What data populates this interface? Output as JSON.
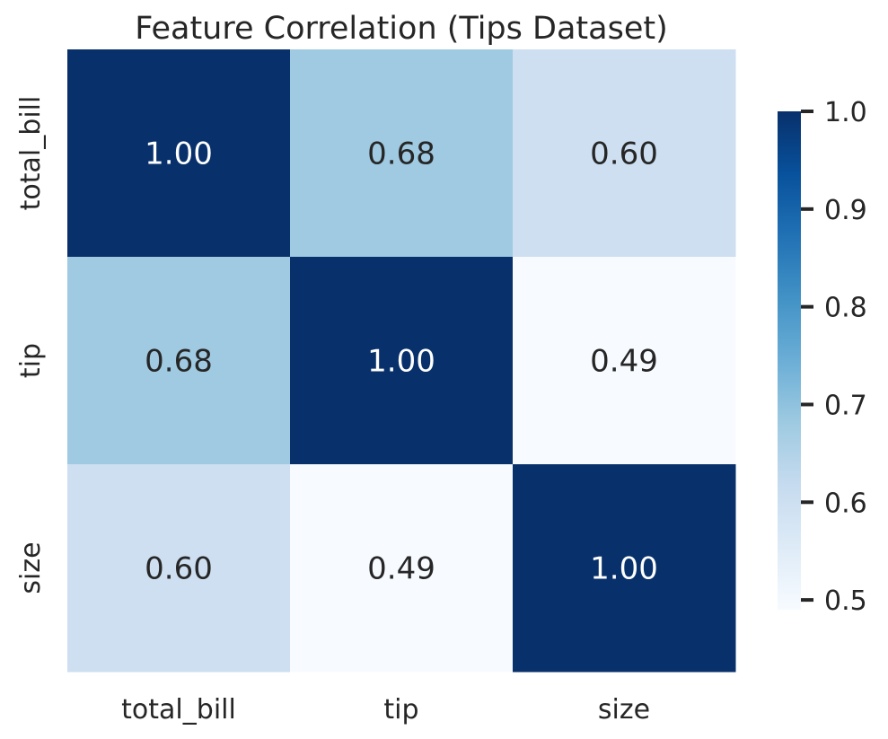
{
  "chart_data": {
    "type": "heatmap",
    "title": "Feature Correlation (Tips Dataset)",
    "x_labels": [
      "total_bill",
      "tip",
      "size"
    ],
    "y_labels": [
      "total_bill",
      "tip",
      "size"
    ],
    "values": [
      [
        1.0,
        0.68,
        0.6
      ],
      [
        0.68,
        1.0,
        0.49
      ],
      [
        0.6,
        0.49,
        1.0
      ]
    ],
    "cell_text": [
      [
        "1.00",
        "0.68",
        "0.60"
      ],
      [
        "0.68",
        "1.00",
        "0.49"
      ],
      [
        "0.60",
        "0.49",
        "1.00"
      ]
    ],
    "colormap": "Blues",
    "colorbar": {
      "vmin": 0.49,
      "vmax": 1.0,
      "ticks": [
        0.5,
        0.6,
        0.7,
        0.8,
        0.9,
        1.0
      ],
      "tick_labels": [
        "0.5",
        "0.6",
        "0.7",
        "0.8",
        "0.9",
        "1.0"
      ]
    },
    "text_colors": {
      "dark": "#262626",
      "light": "#ffffff"
    }
  }
}
